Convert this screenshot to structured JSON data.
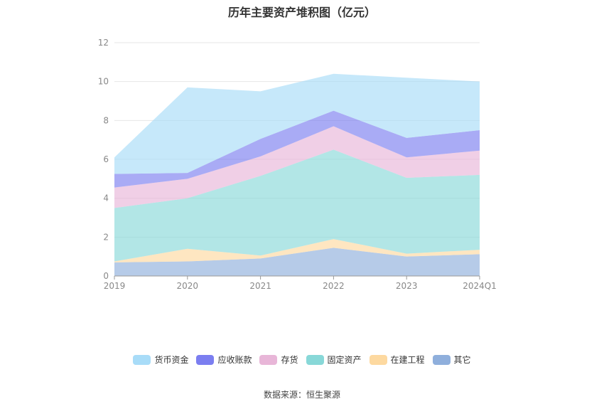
{
  "chart_data": {
    "type": "area",
    "stacked": true,
    "title": "历年主要资产堆积图（亿元）",
    "categories": [
      "2019",
      "2020",
      "2021",
      "2022",
      "2023",
      "2024Q1"
    ],
    "ylim": [
      0,
      12
    ],
    "yticks": [
      0,
      2,
      4,
      6,
      8,
      10,
      12
    ],
    "grid": true,
    "legend_position": "bottom",
    "series": [
      {
        "name": "其它",
        "color": "#8fafdc",
        "values": [
          0.7,
          0.75,
          0.9,
          1.45,
          1.0,
          1.12
        ]
      },
      {
        "name": "在建工程",
        "color": "#fdd9a0",
        "values": [
          0.05,
          0.65,
          0.15,
          0.45,
          0.15,
          0.23
        ]
      },
      {
        "name": "固定资产",
        "color": "#88d8d8",
        "values": [
          2.75,
          2.6,
          4.1,
          4.6,
          3.9,
          3.85
        ]
      },
      {
        "name": "存货",
        "color": "#e8b6d8",
        "values": [
          1.05,
          1.0,
          1.0,
          1.2,
          1.05,
          1.25
        ]
      },
      {
        "name": "应收账款",
        "color": "#7b7ef0",
        "values": [
          0.7,
          0.3,
          0.9,
          0.8,
          1.0,
          1.05
        ]
      },
      {
        "name": "货币资金",
        "color": "#a8dcf8",
        "values": [
          0.85,
          4.4,
          2.45,
          1.9,
          3.1,
          2.5
        ]
      }
    ]
  },
  "legend_order": [
    "货币资金",
    "应收账款",
    "存货",
    "固定资产",
    "在建工程",
    "其它"
  ],
  "source_text": "数据来源：恒生聚源"
}
